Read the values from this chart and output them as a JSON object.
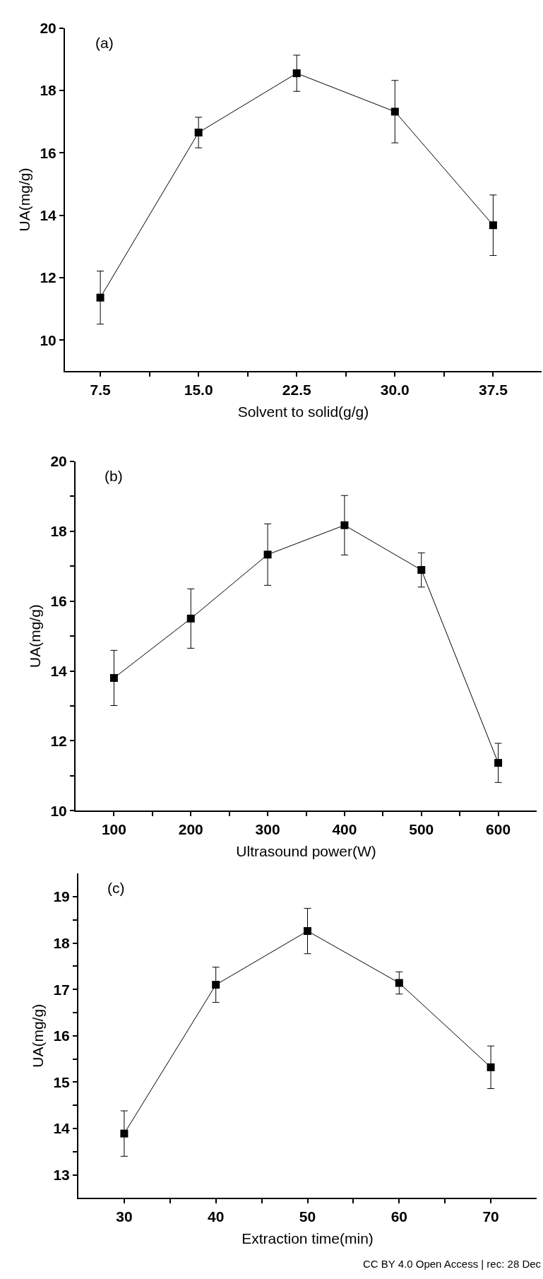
{
  "chart_data": [
    {
      "type": "line",
      "xlabel": "Solvent to solid(g/g)",
      "ylabel": "UA(mg/g)",
      "annotations": [
        "(a)"
      ],
      "marker": "square",
      "line_style": "solid",
      "x": [
        7.5,
        15.0,
        22.5,
        30.0,
        37.5
      ],
      "series": [
        {
          "color": "#000000",
          "values": [
            11.36,
            16.65,
            18.55,
            17.32,
            13.68
          ],
          "errors": [
            0.85,
            0.49,
            0.58,
            1.0,
            0.97
          ]
        }
      ],
      "xlim": [
        4.8,
        41.2
      ],
      "ylim": [
        9,
        20
      ],
      "xticks": [
        {
          "value": 7.5,
          "label": "7.5"
        },
        {
          "value": 11.25,
          "label": null
        },
        {
          "value": 15.0,
          "label": "15.0"
        },
        {
          "value": 18.75,
          "label": null
        },
        {
          "value": 22.5,
          "label": "22.5"
        },
        {
          "value": 26.25,
          "label": null
        },
        {
          "value": 30.0,
          "label": "30.0"
        },
        {
          "value": 33.75,
          "label": null
        },
        {
          "value": 37.5,
          "label": "37.5"
        }
      ],
      "yticks": [
        10,
        12,
        14,
        16,
        18,
        20
      ]
    },
    {
      "type": "line",
      "xlabel": "Ultrasound power(W)",
      "ylabel": "UA(mg/g)",
      "annotations": [
        "(b)"
      ],
      "marker": "square",
      "line_style": "solid",
      "x": [
        100,
        200,
        300,
        400,
        500,
        600
      ],
      "series": [
        {
          "color": "#000000",
          "values": [
            13.8,
            15.5,
            17.33,
            18.17,
            16.89,
            11.37
          ],
          "errors": [
            0.79,
            0.85,
            0.88,
            0.85,
            0.49,
            0.56
          ]
        }
      ],
      "xlim": [
        50,
        650
      ],
      "ylim": [
        10,
        20
      ],
      "xticks": [
        100,
        {
          "value": 150,
          "label": null
        },
        200,
        {
          "value": 250,
          "label": null
        },
        300,
        {
          "value": 350,
          "label": null
        },
        400,
        {
          "value": 450,
          "label": null
        },
        500,
        {
          "value": 550,
          "label": null
        },
        600
      ],
      "yticks": [
        10,
        {
          "value": 11,
          "label": null
        },
        12,
        {
          "value": 13,
          "label": null
        },
        14,
        {
          "value": 15,
          "label": null
        },
        16,
        {
          "value": 17,
          "label": null
        },
        18,
        {
          "value": 19,
          "label": null
        },
        20
      ]
    },
    {
      "type": "line",
      "xlabel": "Extraction time(min)",
      "ylabel": "UA(mg/g)",
      "annotations": [
        "(c)",
        "CC BY 4.0 Open Access | rec: 28 Dec"
      ],
      "marker": "square",
      "line_style": "solid",
      "x": [
        30,
        40,
        50,
        60,
        70
      ],
      "series": [
        {
          "color": "#000000",
          "values": [
            13.89,
            17.1,
            18.26,
            17.14,
            15.32
          ],
          "errors": [
            0.49,
            0.38,
            0.49,
            0.24,
            0.46
          ]
        }
      ],
      "xlim": [
        25,
        75
      ],
      "ylim": [
        12.5,
        19.5
      ],
      "xticks": [
        30,
        {
          "value": 35,
          "label": null
        },
        40,
        {
          "value": 45,
          "label": null
        },
        50,
        {
          "value": 55,
          "label": null
        },
        60,
        {
          "value": 65,
          "label": null
        },
        70
      ],
      "yticks": [
        13,
        {
          "value": 13.5,
          "label": null
        },
        14,
        {
          "value": 14.5,
          "label": null
        },
        15,
        {
          "value": 15.5,
          "label": null
        },
        16,
        {
          "value": 16.5,
          "label": null
        },
        17,
        {
          "value": 17.5,
          "label": null
        },
        18,
        {
          "value": 18.5,
          "label": null
        },
        19
      ]
    }
  ]
}
